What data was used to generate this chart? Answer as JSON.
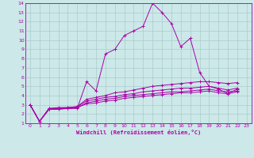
{
  "xlabel": "Windchill (Refroidissement éolien,°C)",
  "ylabel": "",
  "bg_color": "#cce8e8",
  "grid_color": "#aacccc",
  "line_color": "#aa00aa",
  "xlim": [
    -0.5,
    23.5
  ],
  "ylim": [
    1,
    14
  ],
  "xticks": [
    0,
    1,
    2,
    3,
    4,
    5,
    6,
    7,
    8,
    9,
    10,
    11,
    12,
    13,
    14,
    15,
    16,
    17,
    18,
    19,
    20,
    21,
    22,
    23
  ],
  "yticks": [
    1,
    2,
    3,
    4,
    5,
    6,
    7,
    8,
    9,
    10,
    11,
    12,
    13,
    14
  ],
  "series": [
    [
      3.0,
      1.2,
      2.6,
      2.6,
      2.6,
      2.6,
      5.5,
      4.5,
      8.5,
      9.0,
      10.5,
      11.0,
      11.5,
      14.0,
      13.0,
      11.8,
      9.3,
      10.2,
      6.5,
      5.0,
      4.7,
      4.2,
      4.7
    ],
    [
      3.0,
      1.2,
      2.6,
      2.7,
      2.7,
      2.8,
      3.6,
      3.8,
      4.0,
      4.3,
      4.4,
      4.6,
      4.8,
      5.0,
      5.1,
      5.2,
      5.3,
      5.4,
      5.5,
      5.5,
      5.4,
      5.3,
      5.4
    ],
    [
      3.0,
      1.2,
      2.5,
      2.6,
      2.7,
      2.8,
      3.4,
      3.6,
      3.8,
      3.9,
      4.1,
      4.2,
      4.4,
      4.5,
      4.6,
      4.7,
      4.8,
      4.8,
      4.9,
      5.0,
      4.8,
      4.6,
      4.8
    ],
    [
      3.0,
      1.2,
      2.5,
      2.6,
      2.6,
      2.7,
      3.2,
      3.4,
      3.6,
      3.7,
      3.9,
      4.0,
      4.1,
      4.2,
      4.3,
      4.4,
      4.4,
      4.5,
      4.6,
      4.7,
      4.5,
      4.4,
      4.5
    ],
    [
      3.0,
      1.2,
      2.5,
      2.5,
      2.6,
      2.7,
      3.1,
      3.2,
      3.4,
      3.5,
      3.7,
      3.8,
      3.9,
      4.0,
      4.1,
      4.2,
      4.3,
      4.3,
      4.4,
      4.5,
      4.3,
      4.2,
      4.4
    ]
  ]
}
